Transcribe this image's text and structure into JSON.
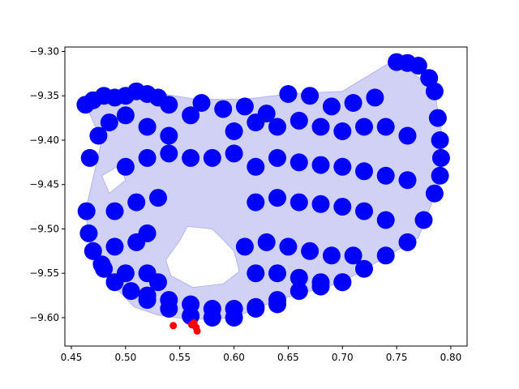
{
  "chart_data": {
    "type": "scatter",
    "title": "",
    "xlabel": "",
    "ylabel": "",
    "xlim": [
      0.444,
      0.815
    ],
    "ylim": [
      -9.632,
      -9.295
    ],
    "grid": false,
    "x_ticks": [
      0.45,
      0.5,
      0.55,
      0.6,
      0.65,
      0.7,
      0.75,
      0.8
    ],
    "x_tick_labels": [
      "0.45",
      "0.50",
      "0.55",
      "0.60",
      "0.65",
      "0.70",
      "0.75",
      "0.80"
    ],
    "y_ticks": [
      -9.3,
      -9.35,
      -9.4,
      -9.45,
      -9.5,
      -9.55,
      -9.6
    ],
    "y_tick_labels": [
      "−9.30",
      "−9.35",
      "−9.40",
      "−9.45",
      "−9.50",
      "−9.55",
      "−9.60"
    ],
    "colors": {
      "inliers": "#0000ff",
      "outliers": "#ff0000",
      "hull_fill": "#ccccf5",
      "hull_edge": "#b3b3ee"
    },
    "hull": {
      "x": [
        0.462,
        0.482,
        0.51,
        0.56,
        0.57,
        0.61,
        0.65,
        0.7,
        0.75,
        0.785,
        0.792,
        0.792,
        0.77,
        0.7,
        0.64,
        0.6,
        0.56,
        0.53,
        0.508,
        0.47,
        0.463,
        0.478,
        0.462
      ],
      "y": [
        -9.357,
        -9.345,
        -9.343,
        -9.353,
        -9.354,
        -9.354,
        -9.348,
        -9.345,
        -9.308,
        -9.345,
        -9.395,
        -9.44,
        -9.51,
        -9.56,
        -9.58,
        -9.6,
        -9.602,
        -9.597,
        -9.588,
        -9.54,
        -9.48,
        -9.4,
        -9.357
      ]
    },
    "holes": [
      {
        "x": [
          0.557,
          0.58,
          0.59,
          0.6,
          0.605,
          0.59,
          0.562,
          0.542,
          0.537,
          0.55
        ],
        "y": [
          -9.497,
          -9.5,
          -9.512,
          -9.525,
          -9.548,
          -9.562,
          -9.566,
          -9.553,
          -9.535,
          -9.513
        ]
      },
      {
        "x": [
          0.478,
          0.495,
          0.5,
          0.485
        ],
        "y": [
          -9.44,
          -9.428,
          -9.445,
          -9.46
        ]
      }
    ],
    "series": [
      {
        "role": "inliers",
        "x": [
          0.463,
          0.47,
          0.48,
          0.49,
          0.5,
          0.51,
          0.52,
          0.53,
          0.54,
          0.56,
          0.57,
          0.59,
          0.61,
          0.63,
          0.65,
          0.67,
          0.69,
          0.71,
          0.73,
          0.75,
          0.76,
          0.77,
          0.78,
          0.785,
          0.788,
          0.79,
          0.791,
          0.79,
          0.785,
          0.775,
          0.76,
          0.74,
          0.72,
          0.7,
          0.68,
          0.66,
          0.64,
          0.62,
          0.6,
          0.58,
          0.56,
          0.54,
          0.52,
          0.505,
          0.49,
          0.478,
          0.47,
          0.466,
          0.464,
          0.467,
          0.475,
          0.485,
          0.5,
          0.52,
          0.54,
          0.6,
          0.62,
          0.64,
          0.66,
          0.68,
          0.7,
          0.72,
          0.74,
          0.76,
          0.5,
          0.52,
          0.54,
          0.56,
          0.58,
          0.6,
          0.62,
          0.64,
          0.66,
          0.68,
          0.7,
          0.72,
          0.74,
          0.76,
          0.49,
          0.51,
          0.53,
          0.62,
          0.64,
          0.66,
          0.68,
          0.7,
          0.72,
          0.74,
          0.49,
          0.51,
          0.52,
          0.61,
          0.63,
          0.65,
          0.67,
          0.69,
          0.71,
          0.48,
          0.5,
          0.52,
          0.53,
          0.62,
          0.64,
          0.66,
          0.68,
          0.7,
          0.52,
          0.54,
          0.56,
          0.58,
          0.6,
          0.62,
          0.64
        ],
        "y": [
          -9.36,
          -9.355,
          -9.35,
          -9.352,
          -9.35,
          -9.345,
          -9.348,
          -9.352,
          -9.36,
          -9.372,
          -9.358,
          -9.365,
          -9.362,
          -9.37,
          -9.348,
          -9.35,
          -9.362,
          -9.358,
          -9.352,
          -9.312,
          -9.313,
          -9.316,
          -9.33,
          -9.345,
          -9.375,
          -9.4,
          -9.42,
          -9.44,
          -9.46,
          -9.49,
          -9.515,
          -9.53,
          -9.545,
          -9.56,
          -9.565,
          -9.57,
          -9.58,
          -9.59,
          -9.6,
          -9.6,
          -9.598,
          -9.59,
          -9.58,
          -9.57,
          -9.56,
          -9.54,
          -9.525,
          -9.505,
          -9.48,
          -9.42,
          -9.395,
          -9.38,
          -9.372,
          -9.385,
          -9.395,
          -9.39,
          -9.38,
          -9.385,
          -9.378,
          -9.385,
          -9.39,
          -9.385,
          -9.385,
          -9.395,
          -9.43,
          -9.42,
          -9.415,
          -9.42,
          -9.42,
          -9.415,
          -9.43,
          -9.42,
          -9.425,
          -9.428,
          -9.43,
          -9.435,
          -9.44,
          -9.445,
          -9.48,
          -9.47,
          -9.465,
          -9.47,
          -9.465,
          -9.47,
          -9.472,
          -9.475,
          -9.48,
          -9.49,
          -9.52,
          -9.515,
          -9.505,
          -9.52,
          -9.515,
          -9.52,
          -9.525,
          -9.53,
          -9.53,
          -9.545,
          -9.55,
          -9.55,
          -9.56,
          -9.55,
          -9.55,
          -9.555,
          -9.56,
          -9.56,
          -9.575,
          -9.58,
          -9.585,
          -9.59,
          -9.59,
          -9.588,
          -9.585
        ]
      },
      {
        "role": "outliers",
        "x": [
          0.544,
          0.561,
          0.563,
          0.565,
          0.566
        ],
        "y": [
          -9.609,
          -9.608,
          -9.606,
          -9.611,
          -9.615
        ]
      }
    ]
  }
}
